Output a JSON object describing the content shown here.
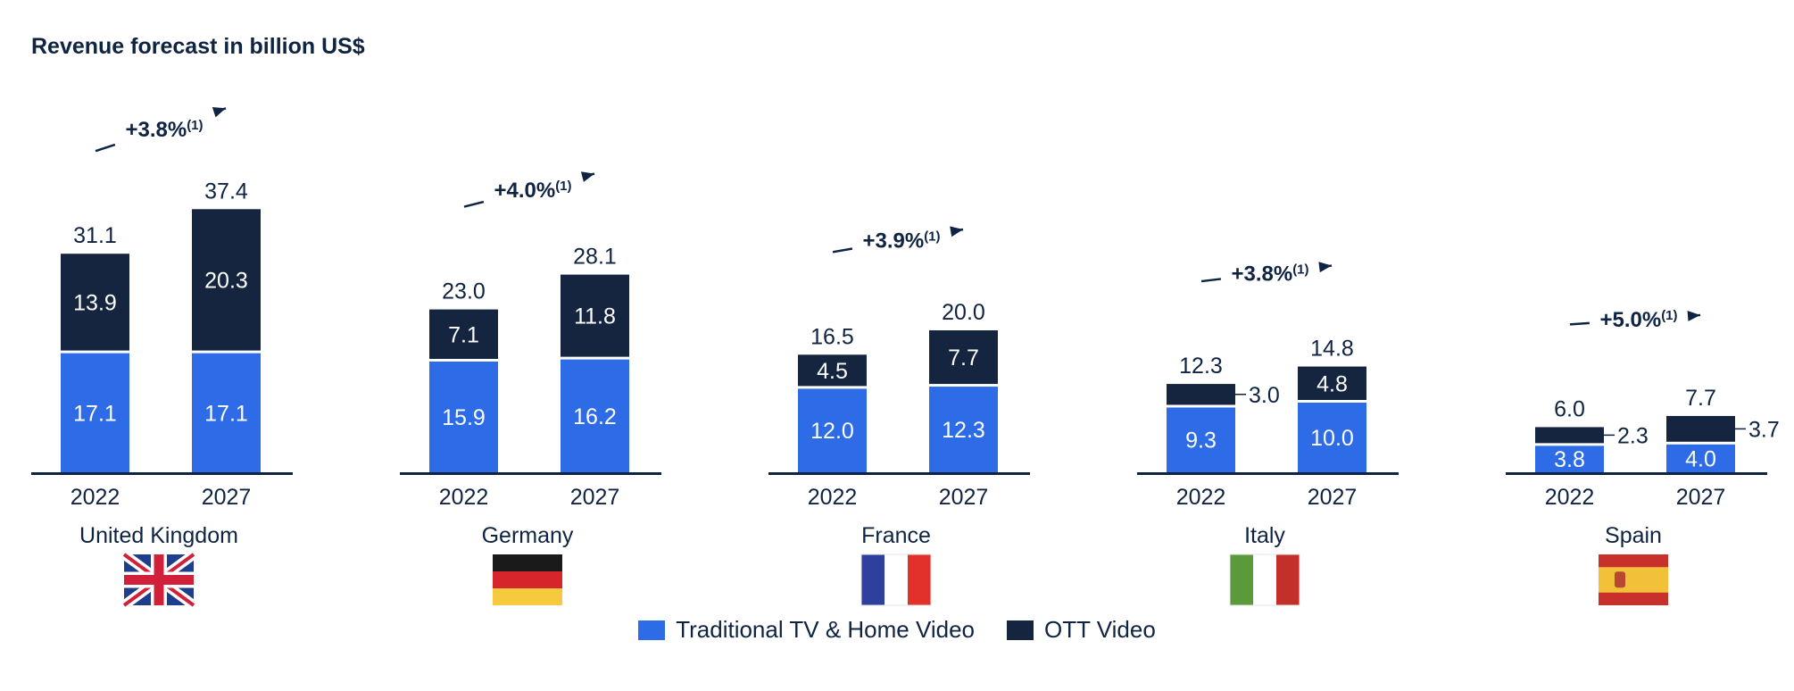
{
  "chart_data": {
    "type": "bar",
    "stacked": true,
    "title": "Revenue forecast in billion US$",
    "legend_position": "bottom-center",
    "series": [
      {
        "name": "Traditional TV & Home Video",
        "color": "#2e6be6"
      },
      {
        "name": "OTT Video",
        "color": "#15253f"
      }
    ],
    "groups": [
      {
        "country": "United Kingdom",
        "flag": "uk-flag",
        "cagr": "+3.8%",
        "cagr_note": "(1)",
        "bars": [
          {
            "year": "2022",
            "traditional": 17.1,
            "ott": 13.9,
            "total": 31.1
          },
          {
            "year": "2027",
            "traditional": 17.1,
            "ott": 20.3,
            "total": 37.4
          }
        ]
      },
      {
        "country": "Germany",
        "flag": "germany-flag",
        "cagr": "+4.0%",
        "cagr_note": "(1)",
        "bars": [
          {
            "year": "2022",
            "traditional": 15.9,
            "ott": 7.1,
            "total": 23.0
          },
          {
            "year": "2027",
            "traditional": 16.2,
            "ott": 11.8,
            "total": 28.1
          }
        ]
      },
      {
        "country": "France",
        "flag": "france-flag",
        "cagr": "+3.9%",
        "cagr_note": "(1)",
        "bars": [
          {
            "year": "2022",
            "traditional": 12.0,
            "ott": 4.5,
            "total": 16.5
          },
          {
            "year": "2027",
            "traditional": 12.3,
            "ott": 7.7,
            "total": 20.0
          }
        ]
      },
      {
        "country": "Italy",
        "flag": "italy-flag",
        "cagr": "+3.8%",
        "cagr_note": "(1)",
        "bars": [
          {
            "year": "2022",
            "traditional": 9.3,
            "ott": 3.0,
            "total": 12.3
          },
          {
            "year": "2027",
            "traditional": 10.0,
            "ott": 4.8,
            "total": 14.8
          }
        ]
      },
      {
        "country": "Spain",
        "flag": "spain-flag",
        "cagr": "+5.0%",
        "cagr_note": "(1)",
        "bars": [
          {
            "year": "2022",
            "traditional": 3.8,
            "ott": 2.3,
            "total": 6.0
          },
          {
            "year": "2027",
            "traditional": 4.0,
            "ott": 3.7,
            "total": 7.7
          }
        ]
      }
    ]
  }
}
